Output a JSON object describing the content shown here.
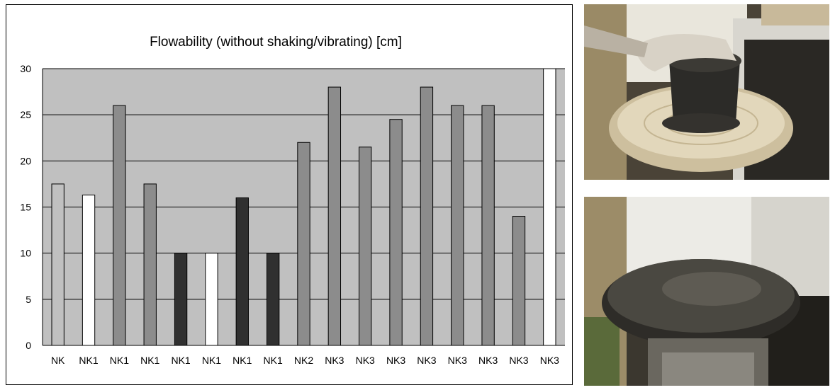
{
  "chart_data": {
    "type": "bar",
    "title": "Flowability (without shaking/vibrating) [cm]",
    "xlabel": "",
    "ylabel": "",
    "ylim": [
      0,
      30
    ],
    "yticks": [
      0,
      5,
      10,
      15,
      20,
      25,
      30
    ],
    "grid": true,
    "legend": "none",
    "categories": [
      "NK",
      "NK1",
      "NK1",
      "NK1",
      "NK1",
      "NK1",
      "NK1",
      "NK1",
      "NK2",
      "NK3",
      "NK3",
      "NK3",
      "NK3",
      "NK3",
      "NK3",
      "NK3",
      "NK3"
    ],
    "values": [
      17.5,
      16.3,
      26,
      17.5,
      10,
      10,
      16,
      10,
      22,
      28,
      21.5,
      24.5,
      28,
      26,
      26,
      14,
      30
    ],
    "bar_colors": [
      "#c0c0c0",
      "#ffffff",
      "#8c8c8c",
      "#8c8c8c",
      "#303030",
      "#ffffff",
      "#303030",
      "#303030",
      "#8c8c8c",
      "#8c8c8c",
      "#8c8c8c",
      "#8c8c8c",
      "#8c8c8c",
      "#8c8c8c",
      "#8c8c8c",
      "#8c8c8c",
      "#ffffff"
    ],
    "plot_background": "#c0c0c0"
  },
  "photos": {
    "top": "cone-on-flow-table-photo",
    "bottom": "spread-concrete-on-flow-table-photo"
  }
}
